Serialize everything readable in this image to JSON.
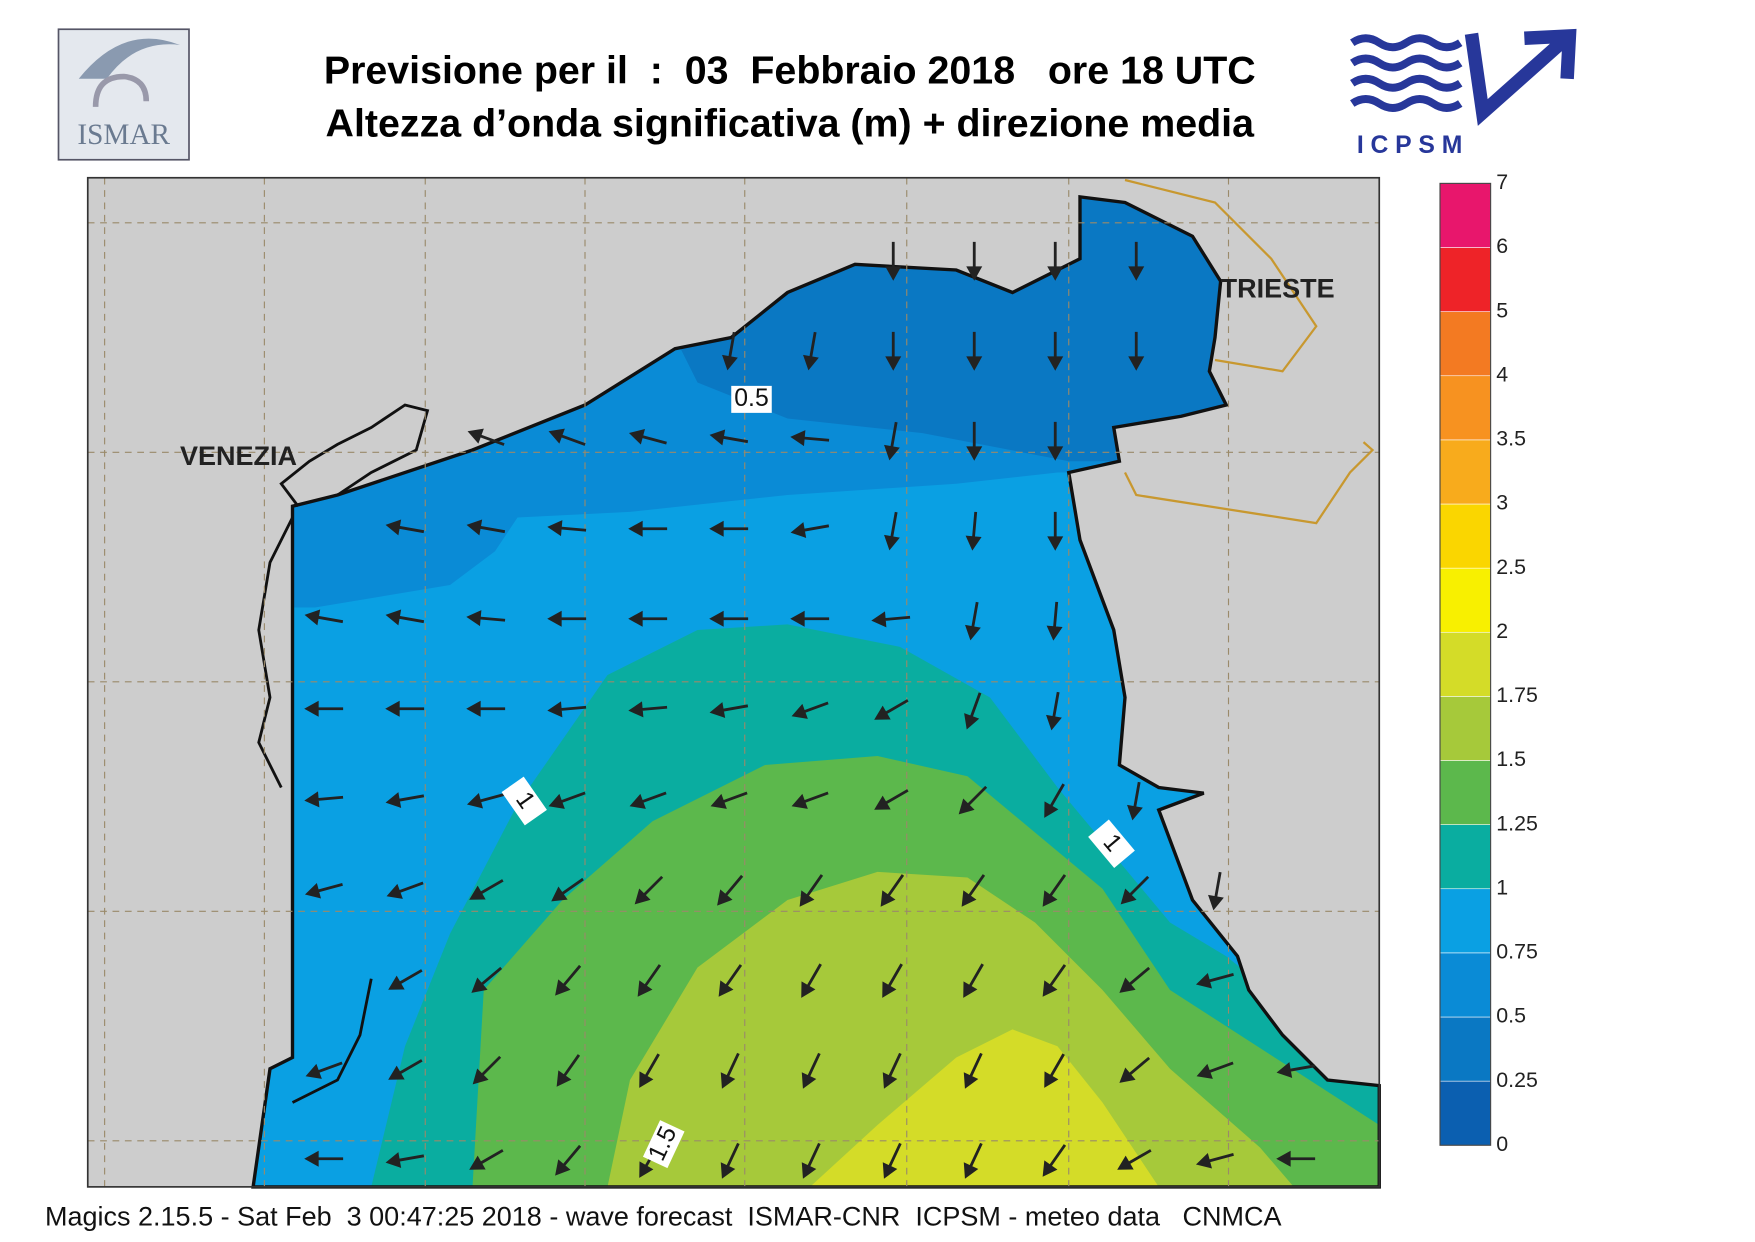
{
  "header": {
    "title": "Previsione per il  :  03  Febbraio 2018   ore 18 UTC",
    "subtitle": "Altezza d’onda significativa (m) + direzione media"
  },
  "logos": {
    "left": "ISMAR",
    "right": "ICPSM"
  },
  "chart_data": {
    "type": "map",
    "places": [
      "VENEZIA",
      "TRIESTE"
    ],
    "contour_labels": [
      0.5,
      1,
      1,
      1.5
    ],
    "colorbar": {
      "ticks": [
        0,
        0.25,
        0.5,
        0.75,
        1,
        1.25,
        1.5,
        1.75,
        2,
        2.5,
        3,
        3.5,
        4,
        5,
        6,
        7
      ],
      "colors": [
        "#0b5fb0",
        "#0a78c3",
        "#0a8bd6",
        "#0aa0e3",
        "#0aada0",
        "#5cb84c",
        "#a6c93a",
        "#d4dc28",
        "#f8f000",
        "#fad600",
        "#f8ab1c",
        "#f79220",
        "#f37a22",
        "#ee2328",
        "#e8166c"
      ]
    },
    "wave_direction_deg": [
      [
        null,
        null,
        null,
        null,
        null,
        null,
        null,
        90,
        90,
        90,
        90,
        null,
        null
      ],
      [
        null,
        null,
        null,
        null,
        null,
        100,
        100,
        90,
        90,
        90,
        90,
        null,
        null
      ],
      [
        null,
        null,
        200,
        200,
        195,
        190,
        185,
        100,
        90,
        90,
        null,
        null,
        null
      ],
      [
        null,
        190,
        190,
        185,
        180,
        180,
        170,
        100,
        95,
        90,
        null,
        null,
        null
      ],
      [
        190,
        190,
        185,
        180,
        180,
        180,
        180,
        175,
        100,
        95,
        null,
        null,
        null
      ],
      [
        180,
        180,
        180,
        175,
        175,
        170,
        160,
        150,
        110,
        100,
        null,
        null,
        null
      ],
      [
        175,
        170,
        165,
        160,
        160,
        160,
        160,
        150,
        135,
        120,
        100,
        null,
        null
      ],
      [
        165,
        160,
        150,
        145,
        135,
        130,
        125,
        125,
        125,
        125,
        135,
        100,
        null
      ],
      [
        null,
        150,
        140,
        130,
        125,
        125,
        120,
        120,
        120,
        125,
        140,
        165,
        null
      ],
      [
        160,
        150,
        135,
        125,
        120,
        115,
        115,
        115,
        115,
        120,
        140,
        160,
        170
      ],
      [
        180,
        170,
        150,
        130,
        120,
        115,
        115,
        115,
        115,
        125,
        150,
        165,
        180
      ]
    ]
  },
  "footer": "Magics 2.15.5 - Sat Feb  3 00:47:25 2018 - wave forecast  ISMAR-CNR  ICPSM - meteo data   CNMCA"
}
